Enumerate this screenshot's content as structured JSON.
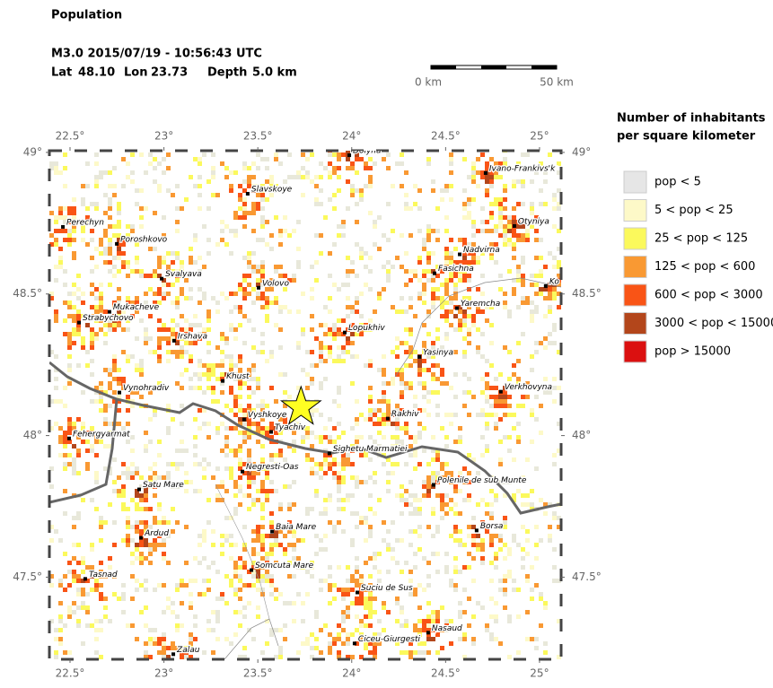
{
  "header": {
    "title": "Population",
    "event_line": "M3.0  2015/07/19 - 10:56:43 UTC",
    "lat_label": "Lat",
    "lat": {
      "value": 48.1,
      "label": "48.10"
    },
    "lon_label": "Lon",
    "lon": {
      "value": 23.73,
      "label": "23.73"
    },
    "depth_label": "Depth",
    "depth": "5.0 km"
  },
  "scale_bar": {
    "start_label": "0 km",
    "end_label": "50 km"
  },
  "map": {
    "xlim": [
      22.39,
      25.115
    ],
    "ylim": [
      47.21,
      49.006
    ],
    "xticks": [
      {
        "value": 22.5,
        "label": "22.5°"
      },
      {
        "value": 23,
        "label": "23°"
      },
      {
        "value": 23.5,
        "label": "23.5°"
      },
      {
        "value": 24,
        "label": "24°"
      },
      {
        "value": 24.5,
        "label": "24.5°"
      },
      {
        "value": 25,
        "label": "25°"
      }
    ],
    "yticks": [
      {
        "value": 47.5,
        "label": "47.5°"
      },
      {
        "value": 48,
        "label": "48°"
      },
      {
        "value": 48.5,
        "label": "48.5°"
      },
      {
        "value": 49,
        "label": "49°"
      }
    ],
    "cities": [
      {
        "name": "Dolyna",
        "lon": 23.987,
        "lat": 48.99
      },
      {
        "name": "Ivano-Frankivs'k",
        "lon": 24.713,
        "lat": 48.927
      },
      {
        "name": "Slavskoye",
        "lon": 23.446,
        "lat": 48.854
      },
      {
        "name": "Perechyn",
        "lon": 22.462,
        "lat": 48.737
      },
      {
        "name": "Otyniya",
        "lon": 24.866,
        "lat": 48.74
      },
      {
        "name": "Poroshkovo",
        "lon": 22.749,
        "lat": 48.677
      },
      {
        "name": "Nadvirna",
        "lon": 24.575,
        "lat": 48.64
      },
      {
        "name": "Fasichna",
        "lon": 24.441,
        "lat": 48.573
      },
      {
        "name": "Svalyava",
        "lon": 22.988,
        "lat": 48.554
      },
      {
        "name": "Volovo",
        "lon": 23.504,
        "lat": 48.522
      },
      {
        "name": "Ko",
        "lon": 25.033,
        "lat": 48.528
      },
      {
        "name": "Mukacheve",
        "lon": 22.71,
        "lat": 48.437
      },
      {
        "name": "Yaremcha",
        "lon": 24.56,
        "lat": 48.45
      },
      {
        "name": "Strabychovo",
        "lon": 22.548,
        "lat": 48.399
      },
      {
        "name": "Lopukhiv",
        "lon": 23.963,
        "lat": 48.364
      },
      {
        "name": "Irshava",
        "lon": 23.054,
        "lat": 48.335
      },
      {
        "name": "Yasinya",
        "lon": 24.36,
        "lat": 48.278
      },
      {
        "name": "Khust",
        "lon": 23.313,
        "lat": 48.193
      },
      {
        "name": "Vynohradiv",
        "lon": 22.763,
        "lat": 48.152
      },
      {
        "name": "Verkhovyna",
        "lon": 24.794,
        "lat": 48.155
      },
      {
        "name": "Rakhiv",
        "lon": 24.192,
        "lat": 48.06
      },
      {
        "name": "Vyshkoye",
        "lon": 23.427,
        "lat": 48.057
      },
      {
        "name": "Tyachiv",
        "lon": 23.571,
        "lat": 48.013
      },
      {
        "name": "Fehergyarmat",
        "lon": 22.495,
        "lat": 47.99
      },
      {
        "name": "Sighetu Marmatiei",
        "lon": 23.881,
        "lat": 47.937
      },
      {
        "name": "Negresti-Oas",
        "lon": 23.418,
        "lat": 47.873
      },
      {
        "name": "Polenile de sub Munte",
        "lon": 24.436,
        "lat": 47.826
      },
      {
        "name": "Satu Mare",
        "lon": 22.868,
        "lat": 47.81
      },
      {
        "name": "Baia Mare",
        "lon": 23.576,
        "lat": 47.661
      },
      {
        "name": "Borsa",
        "lon": 24.665,
        "lat": 47.665
      },
      {
        "name": "Ardud",
        "lon": 22.878,
        "lat": 47.639
      },
      {
        "name": "Somcuta Mare",
        "lon": 23.466,
        "lat": 47.525
      },
      {
        "name": "Tasnad",
        "lon": 22.581,
        "lat": 47.494
      },
      {
        "name": "Suciu de Sus",
        "lon": 24.03,
        "lat": 47.446
      },
      {
        "name": "Nasaud",
        "lon": 24.407,
        "lat": 47.304
      },
      {
        "name": "Ciceu-Giurgesti",
        "lon": 24.015,
        "lat": 47.266
      },
      {
        "name": "Zalau",
        "lon": 23.05,
        "lat": 47.228
      }
    ]
  },
  "legend": {
    "title_lines": [
      "Number of inhabitants",
      "per square kilometer"
    ],
    "entries": [
      {
        "label": "pop < 5",
        "color": "#e6e6e6"
      },
      {
        "label": "5 < pop < 25",
        "color": "#fdf9c8"
      },
      {
        "label": "25 < pop < 125",
        "color": "#fbf95c"
      },
      {
        "label": "125 < pop < 600",
        "color": "#f99933"
      },
      {
        "label": "600 < pop < 3000",
        "color": "#f95416"
      },
      {
        "label": "3000 < pop < 15000",
        "color": "#b3461b"
      },
      {
        "label": "pop > 15000",
        "color": "#db1010"
      }
    ]
  }
}
